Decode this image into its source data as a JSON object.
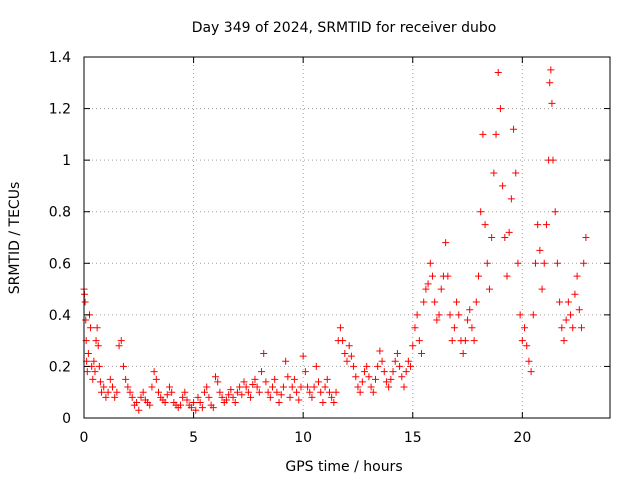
{
  "chart_data": {
    "type": "scatter",
    "title": "Day 349 of 2024, SRMTID for receiver dubo",
    "xlabel": "GPS time / hours",
    "ylabel": "SRMTID / TECUs",
    "xlim": [
      0,
      24
    ],
    "ylim": [
      0,
      1.4
    ],
    "xticks": [
      0,
      5,
      10,
      15,
      20
    ],
    "yticks": [
      0,
      0.2,
      0.4,
      0.6,
      0.8,
      1,
      1.2,
      1.4
    ],
    "xtick_labels": [
      "0",
      "5",
      "10",
      "15",
      "20"
    ],
    "ytick_labels": [
      "0",
      "0.2",
      "0.4",
      "0.6",
      "0.8",
      "1",
      "1.2",
      "1.4"
    ],
    "grid": true,
    "marker": "+",
    "marker_color": "#ff0000",
    "series": [
      {
        "name": "SRMTID",
        "points": [
          [
            0.0,
            0.5
          ],
          [
            0.02,
            0.48
          ],
          [
            0.05,
            0.45
          ],
          [
            0.08,
            0.38
          ],
          [
            0.1,
            0.3
          ],
          [
            0.12,
            0.22
          ],
          [
            0.15,
            0.18
          ],
          [
            0.2,
            0.25
          ],
          [
            0.25,
            0.4
          ],
          [
            0.3,
            0.35
          ],
          [
            0.35,
            0.2
          ],
          [
            0.4,
            0.15
          ],
          [
            0.45,
            0.22
          ],
          [
            0.5,
            0.18
          ],
          [
            0.55,
            0.3
          ],
          [
            0.6,
            0.35
          ],
          [
            0.65,
            0.28
          ],
          [
            0.7,
            0.2
          ],
          [
            0.75,
            0.14
          ],
          [
            0.8,
            0.1
          ],
          [
            0.9,
            0.12
          ],
          [
            1.0,
            0.08
          ],
          [
            1.1,
            0.1
          ],
          [
            1.2,
            0.15
          ],
          [
            1.3,
            0.12
          ],
          [
            1.4,
            0.08
          ],
          [
            1.5,
            0.1
          ],
          [
            1.6,
            0.28
          ],
          [
            1.7,
            0.3
          ],
          [
            1.8,
            0.2
          ],
          [
            1.9,
            0.15
          ],
          [
            2.0,
            0.12
          ],
          [
            2.1,
            0.1
          ],
          [
            2.2,
            0.08
          ],
          [
            2.3,
            0.05
          ],
          [
            2.4,
            0.06
          ],
          [
            2.5,
            0.03
          ],
          [
            2.6,
            0.08
          ],
          [
            2.7,
            0.1
          ],
          [
            2.8,
            0.07
          ],
          [
            2.9,
            0.06
          ],
          [
            3.0,
            0.05
          ],
          [
            3.1,
            0.12
          ],
          [
            3.2,
            0.18
          ],
          [
            3.3,
            0.15
          ],
          [
            3.4,
            0.1
          ],
          [
            3.5,
            0.08
          ],
          [
            3.6,
            0.07
          ],
          [
            3.7,
            0.06
          ],
          [
            3.8,
            0.09
          ],
          [
            3.9,
            0.12
          ],
          [
            4.0,
            0.1
          ],
          [
            4.1,
            0.06
          ],
          [
            4.2,
            0.05
          ],
          [
            4.3,
            0.04
          ],
          [
            4.4,
            0.05
          ],
          [
            4.5,
            0.08
          ],
          [
            4.6,
            0.1
          ],
          [
            4.7,
            0.07
          ],
          [
            4.8,
            0.05
          ],
          [
            4.9,
            0.04
          ],
          [
            5.0,
            0.06
          ],
          [
            5.1,
            0.03
          ],
          [
            5.2,
            0.08
          ],
          [
            5.3,
            0.06
          ],
          [
            5.4,
            0.04
          ],
          [
            5.5,
            0.1
          ],
          [
            5.6,
            0.12
          ],
          [
            5.7,
            0.08
          ],
          [
            5.8,
            0.05
          ],
          [
            5.9,
            0.04
          ],
          [
            6.0,
            0.16
          ],
          [
            6.1,
            0.14
          ],
          [
            6.2,
            0.1
          ],
          [
            6.3,
            0.08
          ],
          [
            6.4,
            0.06
          ],
          [
            6.5,
            0.07
          ],
          [
            6.6,
            0.09
          ],
          [
            6.7,
            0.11
          ],
          [
            6.8,
            0.08
          ],
          [
            6.9,
            0.06
          ],
          [
            7.0,
            0.1
          ],
          [
            7.1,
            0.12
          ],
          [
            7.2,
            0.09
          ],
          [
            7.3,
            0.14
          ],
          [
            7.4,
            0.12
          ],
          [
            7.5,
            0.1
          ],
          [
            7.6,
            0.08
          ],
          [
            7.7,
            0.13
          ],
          [
            7.8,
            0.15
          ],
          [
            7.9,
            0.12
          ],
          [
            8.0,
            0.1
          ],
          [
            8.1,
            0.18
          ],
          [
            8.2,
            0.25
          ],
          [
            8.3,
            0.14
          ],
          [
            8.4,
            0.1
          ],
          [
            8.5,
            0.08
          ],
          [
            8.6,
            0.12
          ],
          [
            8.7,
            0.15
          ],
          [
            8.8,
            0.1
          ],
          [
            8.9,
            0.06
          ],
          [
            9.0,
            0.09
          ],
          [
            9.1,
            0.12
          ],
          [
            9.2,
            0.22
          ],
          [
            9.3,
            0.16
          ],
          [
            9.4,
            0.08
          ],
          [
            9.5,
            0.12
          ],
          [
            9.6,
            0.15
          ],
          [
            9.7,
            0.1
          ],
          [
            9.8,
            0.07
          ],
          [
            9.9,
            0.12
          ],
          [
            10.0,
            0.24
          ],
          [
            10.1,
            0.18
          ],
          [
            10.2,
            0.12
          ],
          [
            10.3,
            0.1
          ],
          [
            10.4,
            0.08
          ],
          [
            10.5,
            0.12
          ],
          [
            10.6,
            0.2
          ],
          [
            10.7,
            0.14
          ],
          [
            10.8,
            0.1
          ],
          [
            10.9,
            0.06
          ],
          [
            11.0,
            0.12
          ],
          [
            11.1,
            0.15
          ],
          [
            11.2,
            0.1
          ],
          [
            11.3,
            0.08
          ],
          [
            11.4,
            0.06
          ],
          [
            11.5,
            0.1
          ],
          [
            11.6,
            0.3
          ],
          [
            11.7,
            0.35
          ],
          [
            11.8,
            0.3
          ],
          [
            11.9,
            0.25
          ],
          [
            12.0,
            0.22
          ],
          [
            12.1,
            0.28
          ],
          [
            12.2,
            0.24
          ],
          [
            12.3,
            0.2
          ],
          [
            12.4,
            0.16
          ],
          [
            12.5,
            0.12
          ],
          [
            12.6,
            0.1
          ],
          [
            12.7,
            0.14
          ],
          [
            12.8,
            0.18
          ],
          [
            12.9,
            0.2
          ],
          [
            13.0,
            0.16
          ],
          [
            13.1,
            0.12
          ],
          [
            13.2,
            0.1
          ],
          [
            13.3,
            0.15
          ],
          [
            13.4,
            0.2
          ],
          [
            13.5,
            0.26
          ],
          [
            13.6,
            0.22
          ],
          [
            13.7,
            0.18
          ],
          [
            13.8,
            0.14
          ],
          [
            13.9,
            0.12
          ],
          [
            14.0,
            0.15
          ],
          [
            14.1,
            0.18
          ],
          [
            14.2,
            0.22
          ],
          [
            14.3,
            0.25
          ],
          [
            14.4,
            0.2
          ],
          [
            14.5,
            0.16
          ],
          [
            14.6,
            0.12
          ],
          [
            14.7,
            0.18
          ],
          [
            14.8,
            0.22
          ],
          [
            14.9,
            0.2
          ],
          [
            15.0,
            0.28
          ],
          [
            15.1,
            0.35
          ],
          [
            15.2,
            0.4
          ],
          [
            15.3,
            0.3
          ],
          [
            15.4,
            0.25
          ],
          [
            15.5,
            0.45
          ],
          [
            15.6,
            0.5
          ],
          [
            15.7,
            0.52
          ],
          [
            15.8,
            0.6
          ],
          [
            15.9,
            0.55
          ],
          [
            16.0,
            0.45
          ],
          [
            16.1,
            0.38
          ],
          [
            16.2,
            0.4
          ],
          [
            16.3,
            0.5
          ],
          [
            16.4,
            0.55
          ],
          [
            16.5,
            0.68
          ],
          [
            16.6,
            0.55
          ],
          [
            16.7,
            0.4
          ],
          [
            16.8,
            0.3
          ],
          [
            16.9,
            0.35
          ],
          [
            17.0,
            0.45
          ],
          [
            17.1,
            0.4
          ],
          [
            17.2,
            0.3
          ],
          [
            17.3,
            0.25
          ],
          [
            17.4,
            0.3
          ],
          [
            17.5,
            0.38
          ],
          [
            17.6,
            0.42
          ],
          [
            17.7,
            0.35
          ],
          [
            17.8,
            0.3
          ],
          [
            17.9,
            0.45
          ],
          [
            18.0,
            0.55
          ],
          [
            18.1,
            0.8
          ],
          [
            18.2,
            1.1
          ],
          [
            18.3,
            0.75
          ],
          [
            18.4,
            0.6
          ],
          [
            18.5,
            0.5
          ],
          [
            18.6,
            0.7
          ],
          [
            18.7,
            0.95
          ],
          [
            18.8,
            1.1
          ],
          [
            18.9,
            1.34
          ],
          [
            19.0,
            1.2
          ],
          [
            19.1,
            0.9
          ],
          [
            19.2,
            0.7
          ],
          [
            19.3,
            0.55
          ],
          [
            19.4,
            0.72
          ],
          [
            19.5,
            0.85
          ],
          [
            19.6,
            1.12
          ],
          [
            19.7,
            0.95
          ],
          [
            19.8,
            0.6
          ],
          [
            19.9,
            0.4
          ],
          [
            20.0,
            0.3
          ],
          [
            20.1,
            0.35
          ],
          [
            20.2,
            0.28
          ],
          [
            20.3,
            0.22
          ],
          [
            20.4,
            0.18
          ],
          [
            20.5,
            0.4
          ],
          [
            20.6,
            0.6
          ],
          [
            20.7,
            0.75
          ],
          [
            20.8,
            0.65
          ],
          [
            20.9,
            0.5
          ],
          [
            21.0,
            0.6
          ],
          [
            21.1,
            0.75
          ],
          [
            21.2,
            1.0
          ],
          [
            21.25,
            1.3
          ],
          [
            21.3,
            1.35
          ],
          [
            21.35,
            1.22
          ],
          [
            21.4,
            1.0
          ],
          [
            21.5,
            0.8
          ],
          [
            21.6,
            0.6
          ],
          [
            21.7,
            0.45
          ],
          [
            21.8,
            0.35
          ],
          [
            21.9,
            0.3
          ],
          [
            22.0,
            0.38
          ],
          [
            22.1,
            0.45
          ],
          [
            22.2,
            0.4
          ],
          [
            22.3,
            0.35
          ],
          [
            22.4,
            0.48
          ],
          [
            22.5,
            0.55
          ],
          [
            22.6,
            0.42
          ],
          [
            22.7,
            0.35
          ],
          [
            22.8,
            0.6
          ],
          [
            22.9,
            0.7
          ]
        ]
      }
    ]
  }
}
